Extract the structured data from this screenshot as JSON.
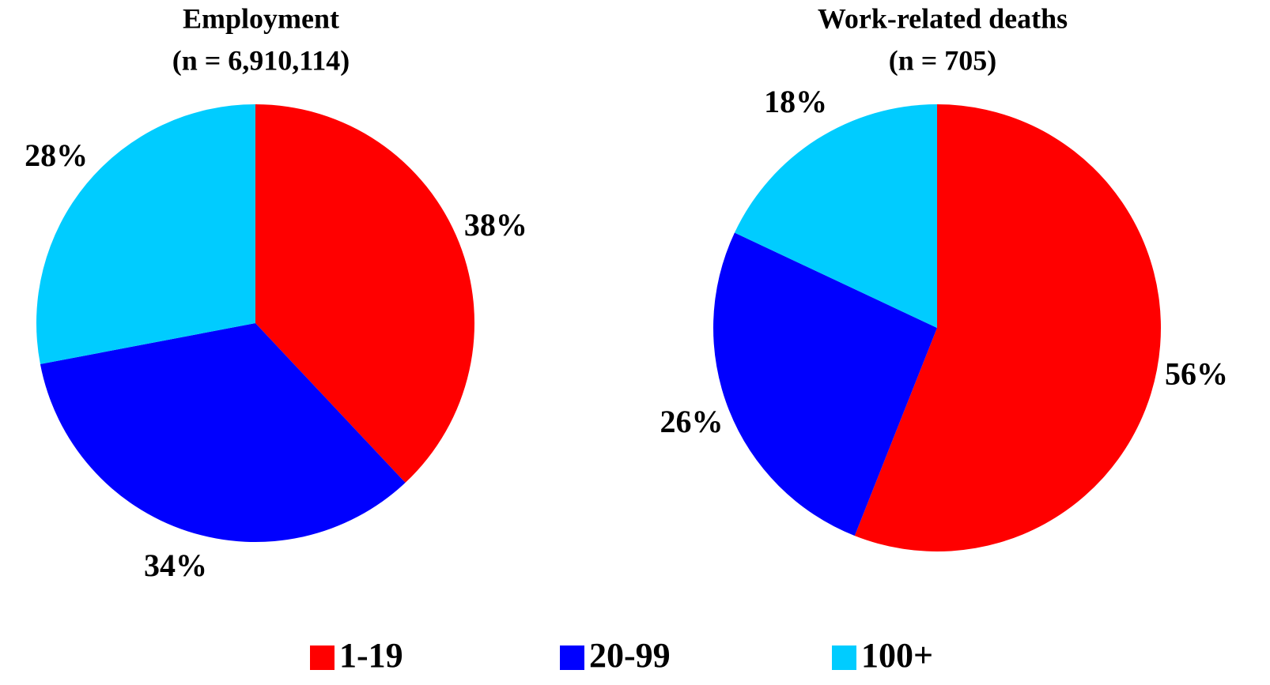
{
  "chart_data": [
    {
      "type": "pie",
      "title": "Employment",
      "subtitle": "(n = 6,910,114)",
      "categories": [
        "1-19",
        "20-99",
        "100+"
      ],
      "values": [
        38,
        34,
        28
      ],
      "value_labels": [
        "38%",
        "34%",
        "28%"
      ],
      "colors": [
        "#ff0000",
        "#0000ff",
        "#00ccff"
      ]
    },
    {
      "type": "pie",
      "title": "Work-related deaths",
      "subtitle": "(n = 705)",
      "categories": [
        "1-19",
        "20-99",
        "100+"
      ],
      "values": [
        56,
        26,
        18
      ],
      "value_labels": [
        "56%",
        "26%",
        "18%"
      ],
      "colors": [
        "#ff0000",
        "#0000ff",
        "#00ccff"
      ]
    }
  ]
}
